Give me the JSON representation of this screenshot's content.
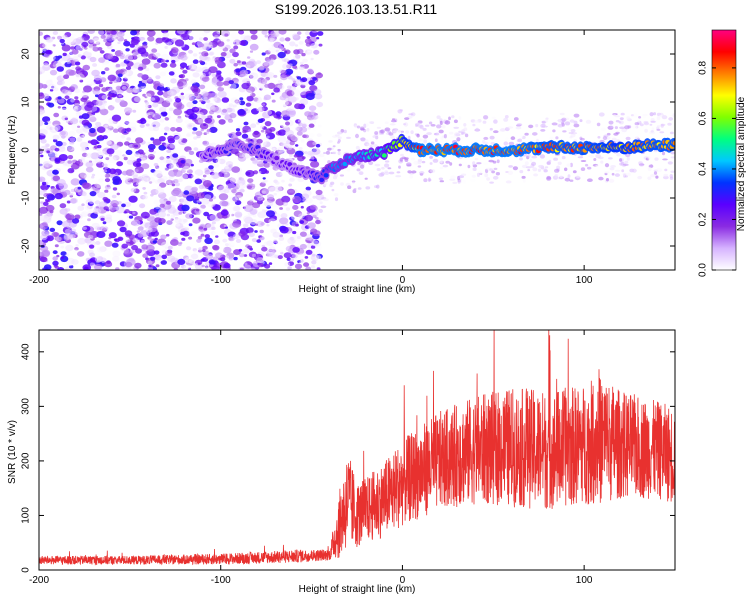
{
  "title": "S199.2026.103.13.51.R11",
  "colors": {
    "snr_line": "#e8312f",
    "axis": "#000000",
    "background": "#ffffff",
    "colormap": [
      "#ffffff",
      "#d6b3ff",
      "#8a2be2",
      "#5a00ff",
      "#0033ff",
      "#00c8ff",
      "#00ff80",
      "#80ff00",
      "#ffff00",
      "#ff8000",
      "#ff0000",
      "#ff0080"
    ]
  },
  "chart_data": [
    {
      "type": "heatmap",
      "name": "spectrogram",
      "xlabel": "Height of straight line (km)",
      "ylabel": "Frequency (Hz)",
      "xlim": [
        -200,
        150
      ],
      "ylim": [
        -25,
        25
      ],
      "xticks": [
        -200,
        -100,
        0,
        100
      ],
      "yticks": [
        -20,
        -10,
        0,
        10,
        20
      ],
      "xtick_labels": [
        "-200",
        "-100",
        "0",
        "100"
      ],
      "ytick_labels": [
        "-20",
        "-10",
        "0",
        "10",
        "20"
      ],
      "colorbar": {
        "label": "Normalized spectral amplitude",
        "range": [
          0,
          0.95
        ],
        "ticks": [
          0.0,
          0.2,
          0.4,
          0.6,
          0.8
        ],
        "tick_labels": [
          "0.0",
          "0.2",
          "0.4",
          "0.6",
          "0.8"
        ]
      },
      "noise_region_x": [
        -200,
        -45
      ],
      "signal_trace": {
        "x": [
          -110,
          -100,
          -90,
          -80,
          -70,
          -60,
          -50,
          -45,
          -40,
          -30,
          -20,
          -10,
          0,
          10,
          20,
          40,
          60,
          80,
          100,
          120,
          140,
          150
        ],
        "freq_hz": [
          -1,
          0,
          1,
          0,
          -2,
          -4,
          -5,
          -6,
          -4,
          -2,
          -1,
          -0.5,
          2,
          0,
          0,
          0,
          0,
          0.5,
          0.5,
          0.5,
          1,
          1
        ],
        "amplitude": [
          0.25,
          0.3,
          0.3,
          0.3,
          0.25,
          0.25,
          0.3,
          0.35,
          0.4,
          0.45,
          0.5,
          0.55,
          0.75,
          0.9,
          0.9,
          0.9,
          0.9,
          0.85,
          0.85,
          0.8,
          0.85,
          0.85
        ]
      }
    },
    {
      "type": "line",
      "name": "snr",
      "xlabel": "Height of straight line (km)",
      "ylabel": "SNR (10 * v/v)",
      "xlim": [
        -200,
        150
      ],
      "ylim": [
        0,
        440
      ],
      "xticks": [
        -200,
        -100,
        0,
        100
      ],
      "yticks": [
        0,
        100,
        200,
        300,
        400
      ],
      "xtick_labels": [
        "-200",
        "-100",
        "0",
        "100"
      ],
      "ytick_labels": [
        "0",
        "100",
        "200",
        "300",
        "400"
      ],
      "series": [
        {
          "name": "SNR",
          "envelope_x": [
            -200,
            -150,
            -100,
            -60,
            -40,
            -35,
            -30,
            -25,
            -20,
            -10,
            0,
            20,
            40,
            60,
            80,
            100,
            110,
            120,
            140,
            150
          ],
          "envelope_mean": [
            18,
            18,
            20,
            25,
            28,
            80,
            130,
            100,
            110,
            130,
            160,
            200,
            220,
            225,
            220,
            230,
            240,
            230,
            220,
            210
          ],
          "envelope_amp": [
            8,
            8,
            10,
            12,
            10,
            60,
            90,
            60,
            60,
            70,
            80,
            90,
            100,
            110,
            110,
            110,
            120,
            100,
            90,
            90
          ]
        }
      ]
    }
  ]
}
